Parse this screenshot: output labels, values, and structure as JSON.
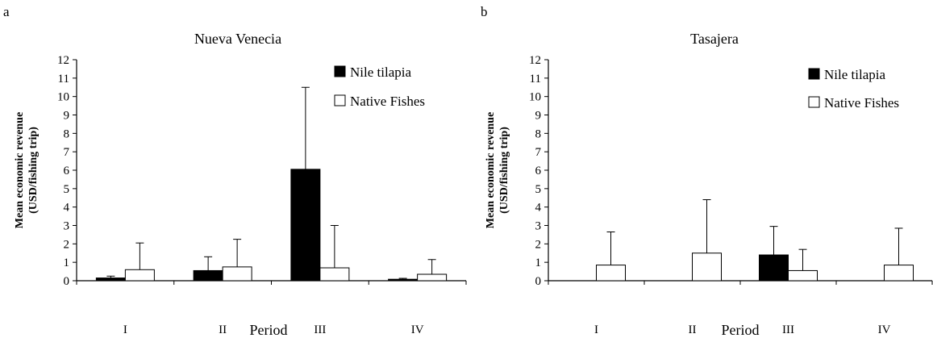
{
  "chart_data": [
    {
      "type": "bar",
      "panel_label": "a",
      "title": "Nueva Venecia",
      "xlabel": "Period",
      "ylabel_line1": "Mean economic revenue",
      "ylabel_line2": "(USD/fishing trip)",
      "ylim": [
        0,
        12
      ],
      "yticks": [
        "0",
        "1",
        "2",
        "3",
        "4",
        "5",
        "6",
        "7",
        "8",
        "9",
        "10",
        "11",
        "12"
      ],
      "categories": [
        "I",
        "II",
        "III",
        "IV"
      ],
      "legend_position": "top-right",
      "series": [
        {
          "name": "Nile tilapia",
          "color": "#000000",
          "values": [
            0.15,
            0.55,
            6.05,
            0.08
          ],
          "error": [
            0.1,
            0.75,
            4.45,
            0.05
          ]
        },
        {
          "name": "Native Fishes",
          "color": "#ffffff",
          "values": [
            0.6,
            0.75,
            0.7,
            0.35
          ],
          "error": [
            1.45,
            1.5,
            2.3,
            0.8
          ]
        }
      ]
    },
    {
      "type": "bar",
      "panel_label": "b",
      "title": "Tasajera",
      "xlabel": "Period",
      "ylabel_line1": "Mean economic revenue",
      "ylabel_line2": "(USD/fishing trip)",
      "ylim": [
        0,
        12
      ],
      "yticks": [
        "0",
        "1",
        "2",
        "3",
        "4",
        "5",
        "6",
        "7",
        "8",
        "9",
        "10",
        "11",
        "12"
      ],
      "categories": [
        "I",
        "II",
        "III",
        "IV"
      ],
      "legend_position": "top-right",
      "series": [
        {
          "name": "Nile tilapia",
          "color": "#000000",
          "values": [
            0,
            0,
            1.4,
            0
          ],
          "error": [
            0,
            0,
            1.55,
            0
          ]
        },
        {
          "name": "Native Fishes",
          "color": "#ffffff",
          "values": [
            0.85,
            1.5,
            0.55,
            0.85
          ],
          "error": [
            1.8,
            2.9,
            1.15,
            2.0
          ]
        }
      ]
    }
  ]
}
